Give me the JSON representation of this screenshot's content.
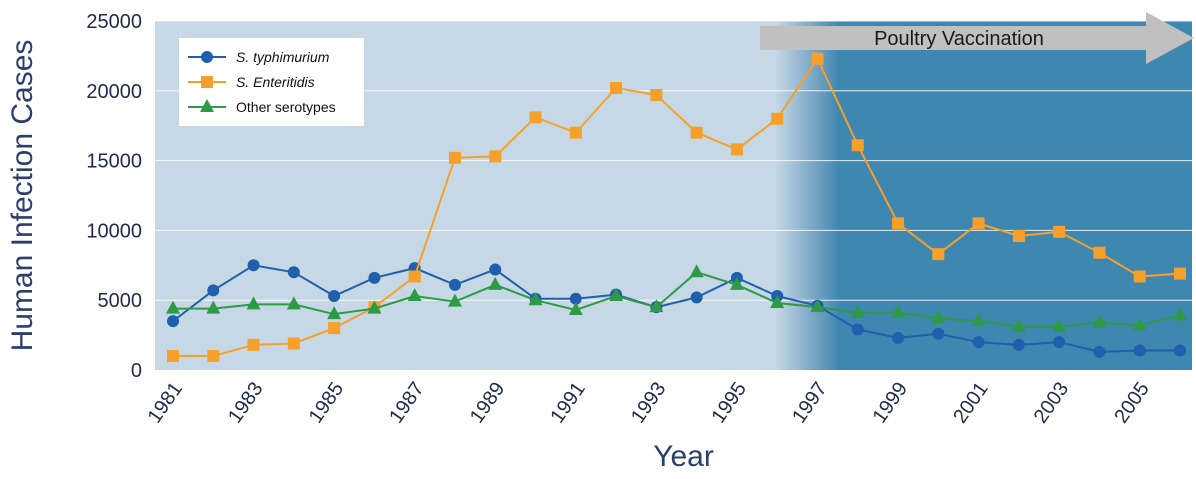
{
  "chart_data": {
    "type": "line",
    "xlabel": "Year",
    "ylabel": "Human Infection Cases",
    "ylim": [
      0,
      25000
    ],
    "yticks": [
      0,
      5000,
      10000,
      15000,
      20000,
      25000
    ],
    "xlim": [
      1981,
      2006
    ],
    "xtick_labels": [
      "1981",
      "1983",
      "1985",
      "1987",
      "1989",
      "1991",
      "1993",
      "1995",
      "1997",
      "1999",
      "2001",
      "2003",
      "2005"
    ],
    "grid": "horizontal",
    "legend_position": "top-left",
    "annotation": {
      "text": "Poultry Vaccination",
      "start_year": 1995,
      "shape": "arrow"
    },
    "x": [
      1981,
      1982,
      1983,
      1984,
      1985,
      1986,
      1987,
      1988,
      1989,
      1990,
      1991,
      1992,
      1993,
      1994,
      1995,
      1996,
      1997,
      1998,
      1999,
      2000,
      2001,
      2002,
      2003,
      2004,
      2005,
      2006
    ],
    "series": [
      {
        "name": "S. typhimurium",
        "italic": true,
        "marker": "circle",
        "color": "#1f5fad",
        "values": [
          3500,
          5700,
          7500,
          7000,
          5300,
          6600,
          7300,
          6100,
          7200,
          5100,
          5100,
          5400,
          4500,
          5200,
          6600,
          5300,
          4600,
          2900,
          2300,
          2600,
          2000,
          1800,
          2000,
          1300,
          1400,
          1400
        ]
      },
      {
        "name": "S. Enteritidis",
        "italic": true,
        "marker": "square",
        "color": "#f5a02a",
        "values": [
          1000,
          1000,
          1800,
          1900,
          3000,
          4500,
          6700,
          15200,
          15300,
          18100,
          17000,
          20200,
          19700,
          17000,
          15800,
          18000,
          22300,
          16100,
          10500,
          8300,
          10500,
          9600,
          9900,
          8400,
          6700,
          6900
        ]
      },
      {
        "name": "Other serotypes",
        "italic": false,
        "marker": "triangle",
        "color": "#2e9a45",
        "values": [
          4400,
          4400,
          4700,
          4700,
          4000,
          4400,
          5300,
          4900,
          6100,
          5000,
          4300,
          5300,
          4500,
          7000,
          6100,
          4800,
          4500,
          4100,
          4100,
          3700,
          3500,
          3100,
          3100,
          3400,
          3200,
          3900
        ]
      }
    ]
  }
}
